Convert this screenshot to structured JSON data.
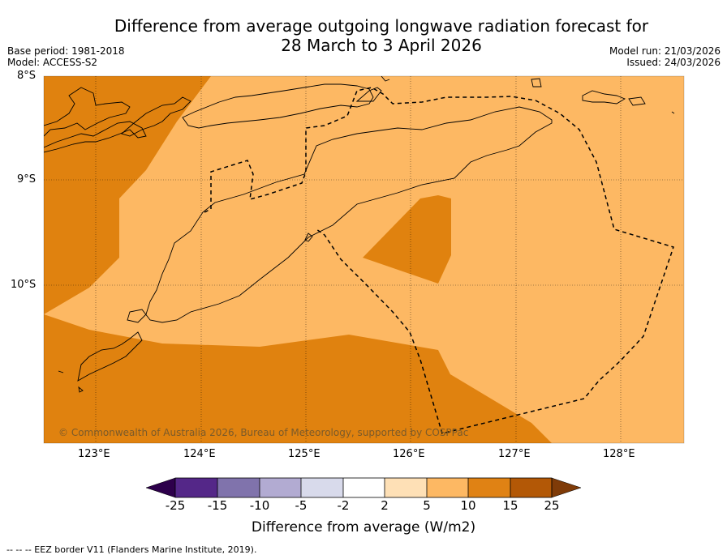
{
  "title": {
    "line1": "Difference from average outgoing longwave radiation forecast for",
    "line2": "28 March to 3 April 2026"
  },
  "meta": {
    "base_period": "Base period: 1981-2018",
    "model": "Model: ACCESS-S2",
    "model_run": "Model run: 21/03/2026",
    "issued": "Issued: 24/03/2026"
  },
  "map": {
    "lat_labels": [
      "8°S",
      "9°S",
      "10°S"
    ],
    "lon_labels": [
      "123°E",
      "124°E",
      "125°E",
      "126°E",
      "127°E",
      "128°E"
    ],
    "copyright": "© Commonwealth of Australia 2026, Bureau of Meteorology, supported by COSPPac",
    "colors": {
      "band_10_15": "#e0820f",
      "band_5_10": "#fdb863",
      "border": "#000000"
    }
  },
  "colorbar": {
    "ticks": [
      "-25",
      "-15",
      "-10",
      "-5",
      "-2",
      "2",
      "5",
      "10",
      "15",
      "25"
    ],
    "colors": [
      "#2d004b",
      "#542788",
      "#8073ac",
      "#b2abd2",
      "#d8daeb",
      "#ffffff",
      "#fee0b6",
      "#fdb863",
      "#e08214",
      "#b35806",
      "#7f3b08"
    ],
    "title": "Difference from average (W/m2)"
  },
  "footer": "--  --  -- EEZ border V11 (Flanders Marine Institute, 2019)."
}
